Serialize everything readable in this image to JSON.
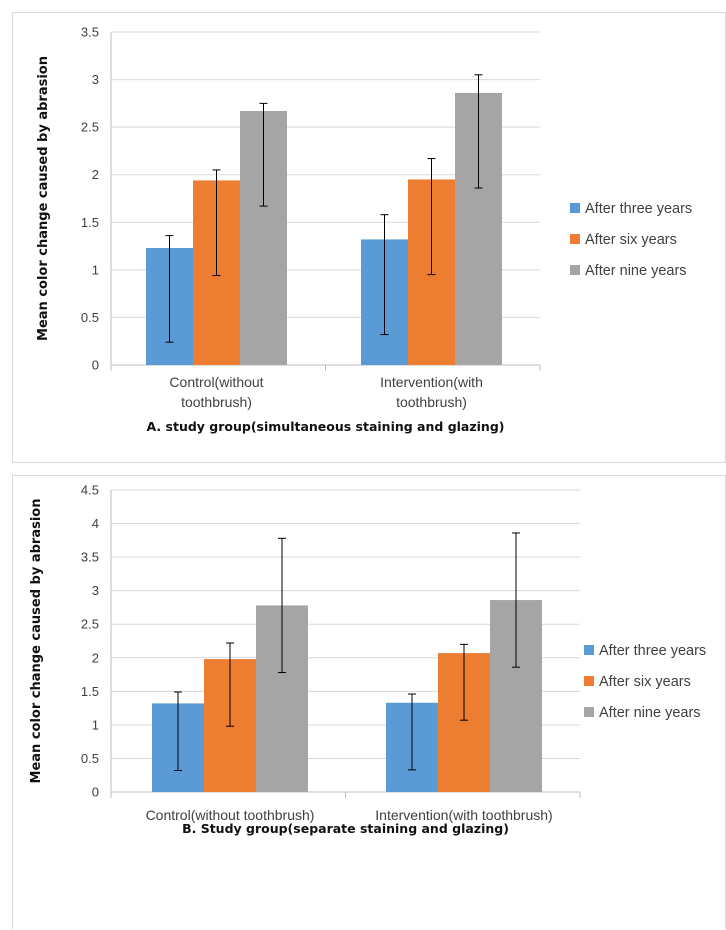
{
  "chart_data": [
    {
      "type": "bar",
      "categories": [
        [
          "Control(without",
          "toothbrush)"
        ],
        [
          "Intervention(with",
          "toothbrush)"
        ]
      ],
      "series": [
        {
          "name": "After three years",
          "color": "#5B9BD5",
          "values": [
            1.23,
            1.32
          ],
          "err_low": [
            0.24,
            0.32
          ],
          "err_high": [
            1.36,
            1.58
          ]
        },
        {
          "name": "After six years",
          "color": "#ED7D31",
          "values": [
            1.94,
            1.95
          ],
          "err_low": [
            0.94,
            0.95
          ],
          "err_high": [
            2.05,
            2.17
          ]
        },
        {
          "name": "After nine years",
          "color": "#A5A5A5",
          "values": [
            2.67,
            2.86
          ],
          "err_low": [
            1.67,
            1.86
          ],
          "err_high": [
            2.75,
            3.05
          ]
        }
      ],
      "yticks": [
        "0",
        "0.5",
        "1",
        "1.5",
        "2",
        "2.5",
        "3",
        "3.5"
      ],
      "ylim": [
        0,
        3.5
      ],
      "ylabel": "Mean color change caused by abrasion",
      "xlabel": "A. study group(simultaneous staining and glazing)",
      "grid": true,
      "legend": "right"
    },
    {
      "type": "bar",
      "categories": [
        [
          "Control(without toothbrush)"
        ],
        [
          "Intervention(with toothbrush)"
        ]
      ],
      "series": [
        {
          "name": "After three years",
          "color": "#5B9BD5",
          "values": [
            1.32,
            1.33
          ],
          "err_low": [
            0.32,
            0.33
          ],
          "err_high": [
            1.49,
            1.46
          ]
        },
        {
          "name": "After six years",
          "color": "#ED7D31",
          "values": [
            1.98,
            2.07
          ],
          "err_low": [
            0.98,
            1.07
          ],
          "err_high": [
            2.22,
            2.2
          ]
        },
        {
          "name": "After nine years",
          "color": "#A5A5A5",
          "values": [
            2.78,
            2.86
          ],
          "err_low": [
            1.78,
            1.86
          ],
          "err_high": [
            3.78,
            3.86
          ]
        }
      ],
      "yticks": [
        "0",
        "0.5",
        "1",
        "1.5",
        "2",
        "2.5",
        "3",
        "3.5",
        "4",
        "4.5"
      ],
      "ylim": [
        0,
        4.5
      ],
      "ylabel": "Mean color change caused by abrasion",
      "xlabel": "B. Study group(separate staining and glazing)",
      "grid": true,
      "legend": "right"
    }
  ]
}
